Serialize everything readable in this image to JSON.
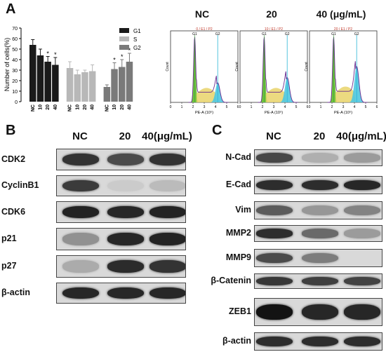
{
  "panel_a": {
    "letter": "A",
    "bar_chart": {
      "ylabel": "Number of cells(%)",
      "y_ticks": [
        "0",
        "10",
        "20",
        "30",
        "40",
        "50",
        "60",
        "70"
      ],
      "legend": [
        "G1",
        "S",
        "G2"
      ],
      "colors": [
        "#1a1a1a",
        "#b8b8b8",
        "#7a7a7a"
      ],
      "x_tick_labels": [
        "NC",
        "10",
        "20",
        "40",
        "NC",
        "10",
        "20",
        "40",
        "NC",
        "10",
        "20",
        "40"
      ],
      "star": "*"
    },
    "flow": {
      "titles": [
        "NC",
        "20",
        "40 (μg/mL)"
      ],
      "gate_texts": [
        "0 / E1 / P2",
        "10 / E1 / P2",
        "20 / E1 / P2"
      ],
      "gate_labels": [
        "G1",
        "G2"
      ],
      "x_axis_label": "PE-A (10⁵)",
      "y_axis_label": "Count",
      "x_ticks": [
        "0",
        "1",
        "2",
        "3",
        "4",
        "5",
        "6"
      ]
    }
  },
  "panel_b": {
    "letter": "B",
    "headers": [
      "NC",
      "20",
      "40(μg/mL)"
    ],
    "rows": [
      "CDK2",
      "CyclinB1",
      "CDK6",
      "p21",
      "p27",
      "β-actin"
    ]
  },
  "panel_c": {
    "letter": "C",
    "headers": [
      "NC",
      "20",
      "40(μg/mL)"
    ],
    "rows": [
      "N-Cad",
      "E-Cad",
      "Vim",
      "MMP2",
      "MMP9",
      "β-Catenin",
      "ZEB1",
      "β-actin"
    ]
  },
  "chart_data": {
    "type": "bar",
    "categories": [
      "NC",
      "10",
      "20",
      "40"
    ],
    "series": [
      {
        "name": "G1",
        "values": [
          54,
          44,
          38,
          35
        ],
        "errors": [
          5,
          6,
          5,
          7
        ],
        "significant": [
          false,
          false,
          true,
          true
        ]
      },
      {
        "name": "S",
        "values": [
          32,
          26,
          28,
          29
        ],
        "errors": [
          6,
          4,
          2,
          6
        ],
        "significant": [
          false,
          false,
          false,
          false
        ]
      },
      {
        "name": "G2",
        "values": [
          14,
          31,
          33,
          38
        ],
        "errors": [
          2,
          6,
          7,
          8
        ],
        "significant": [
          false,
          true,
          true,
          true
        ]
      }
    ],
    "ylabel": "Number of cells(%)",
    "ylim": [
      0,
      70
    ],
    "legend_position": "top-right"
  },
  "blots": {
    "panel_b": [
      [
        0.82,
        0.7,
        0.82
      ],
      [
        0.78,
        0.06,
        0.14
      ],
      [
        0.9,
        0.88,
        0.9
      ],
      [
        0.35,
        0.88,
        0.9
      ],
      [
        0.22,
        0.86,
        0.82
      ],
      [
        0.88,
        0.88,
        0.88
      ]
    ],
    "panel_c": [
      [
        0.72,
        0.2,
        0.3
      ],
      [
        0.85,
        0.85,
        0.88
      ],
      [
        0.62,
        0.32,
        0.42
      ],
      [
        0.85,
        0.55,
        0.3
      ],
      [
        0.7,
        0.45,
        0.0
      ],
      [
        0.8,
        0.76,
        0.74
      ],
      [
        0.98,
        0.88,
        0.88
      ],
      [
        0.85,
        0.85,
        0.85
      ]
    ]
  }
}
